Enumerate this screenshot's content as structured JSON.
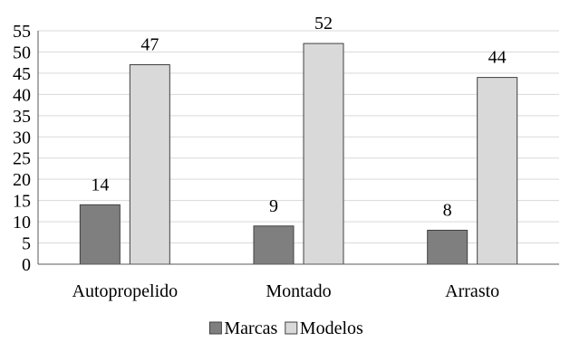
{
  "chart_data": {
    "type": "bar",
    "categories": [
      "Autopropelido",
      "Montado",
      "Arrasto"
    ],
    "series": [
      {
        "name": "Marcas",
        "values": [
          14,
          9,
          8
        ],
        "color": "#7f7f7f"
      },
      {
        "name": "Modelos",
        "values": [
          47,
          52,
          44
        ],
        "color": "#d9d9d9"
      }
    ],
    "yticks": [
      0,
      5,
      10,
      15,
      20,
      25,
      30,
      35,
      40,
      45,
      50,
      55
    ],
    "ylim": [
      0,
      55
    ],
    "grid": true,
    "legend_position": "bottom",
    "data_labels": true,
    "bar_border_color": "#404040",
    "grid_color": "#d9d9d9",
    "axis_color": "#595959"
  }
}
